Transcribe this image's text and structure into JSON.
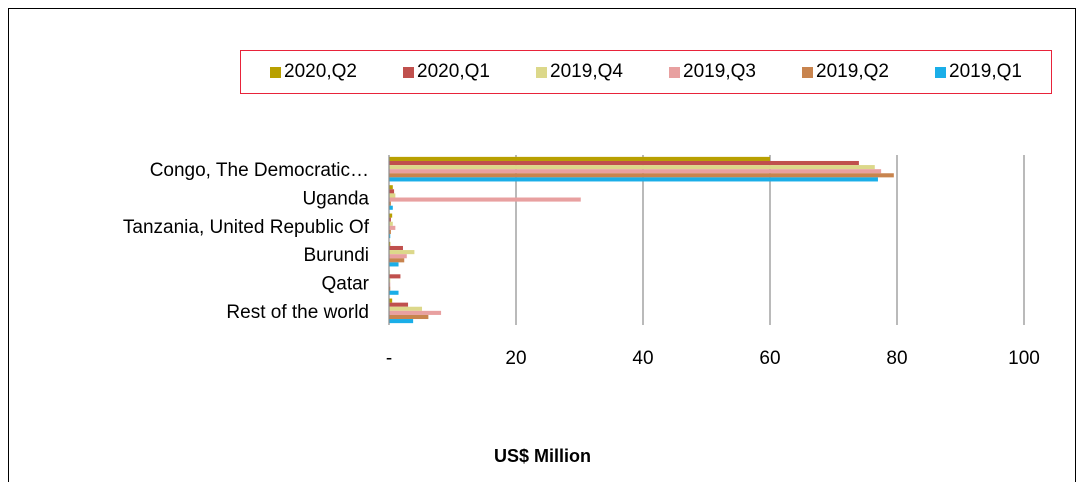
{
  "chart_data": {
    "type": "bar",
    "orientation": "horizontal",
    "categories": [
      "Congo, The Democratic…",
      "Uganda",
      "Tanzania, United Republic Of",
      "Burundi",
      "Qatar",
      "Rest of the world"
    ],
    "series": [
      {
        "name": "2020,Q2",
        "color": "#b8a000",
        "values": [
          60,
          0.6,
          0.5,
          0.2,
          0.1,
          0.5
        ]
      },
      {
        "name": "2020,Q1",
        "color": "#c0504d",
        "values": [
          74,
          0.8,
          0.3,
          2.2,
          1.8,
          3.0
        ]
      },
      {
        "name": "2019,Q4",
        "color": "#dcd88a",
        "values": [
          76.5,
          1.0,
          0.6,
          4.0,
          0.2,
          5.2
        ]
      },
      {
        "name": "2019,Q3",
        "color": "#e8a0a0",
        "values": [
          77.5,
          30.2,
          1.0,
          2.8,
          0.2,
          8.2
        ]
      },
      {
        "name": "2019,Q2",
        "color": "#c8844e",
        "values": [
          79.5,
          0.3,
          0.3,
          2.4,
          0.2,
          6.2
        ]
      },
      {
        "name": "2019,Q1",
        "color": "#1aaee8",
        "values": [
          77,
          0.6,
          0.2,
          1.5,
          1.5,
          3.8
        ]
      }
    ],
    "x_ticks": [
      "-",
      "20",
      "40",
      "60",
      "80",
      "100"
    ],
    "xlim": [
      0,
      100
    ],
    "xlabel": "US$ Million",
    "grid": "vertical",
    "legend_position": "top"
  }
}
